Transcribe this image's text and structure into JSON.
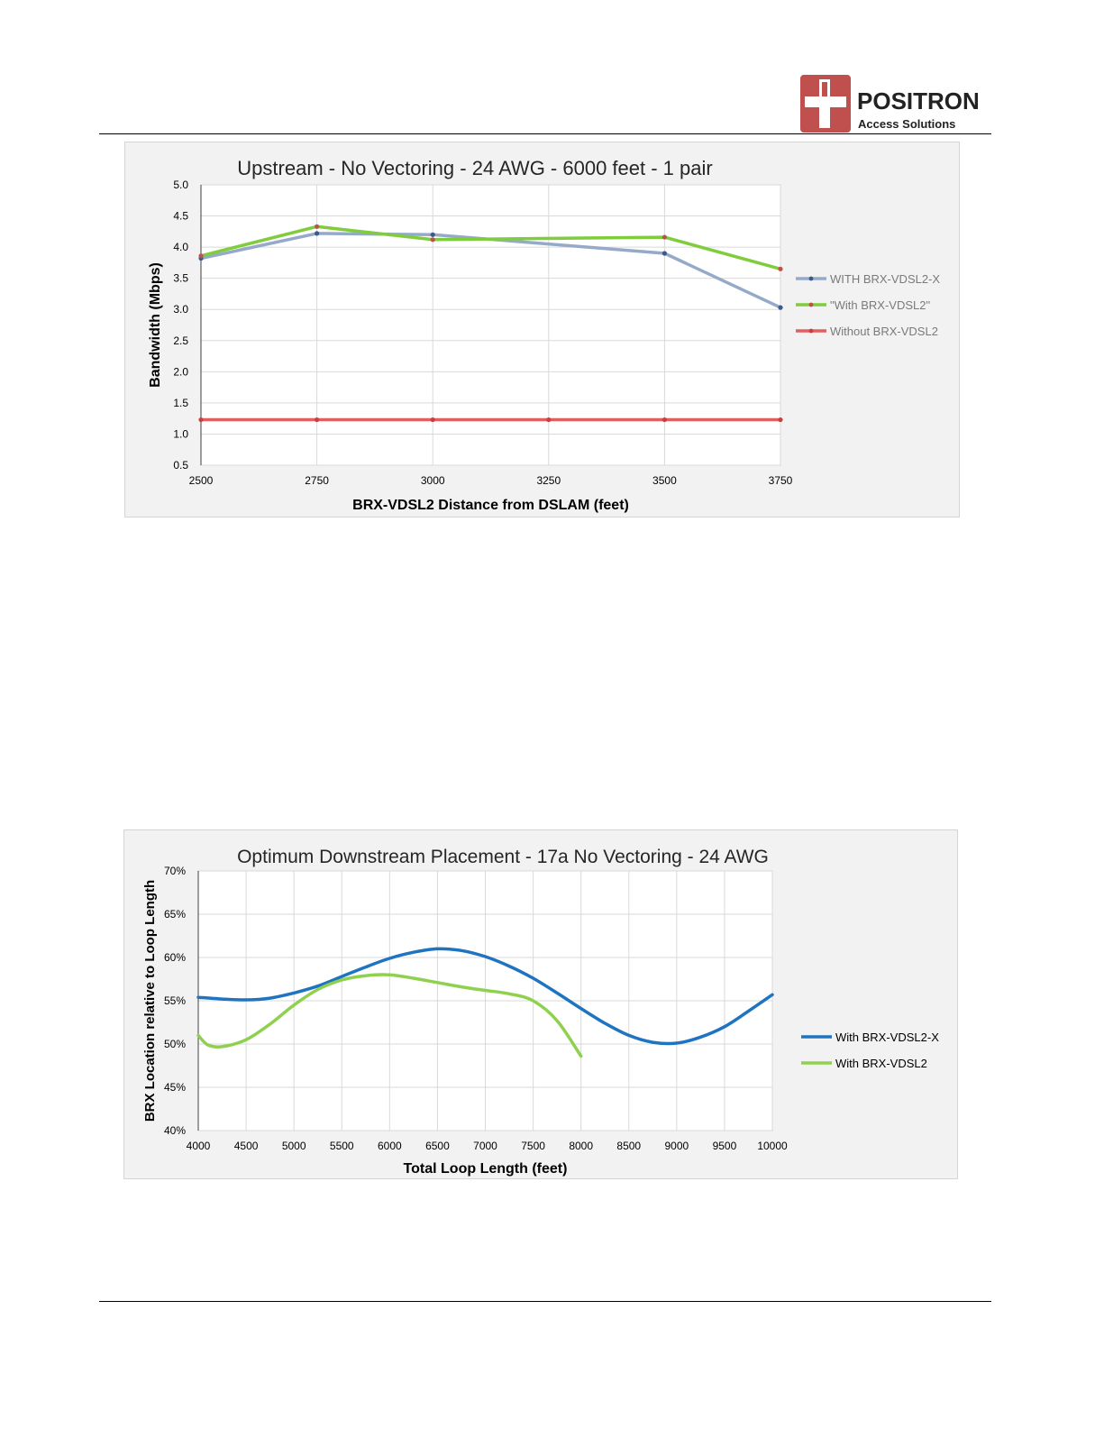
{
  "header": {
    "logo_name": "POSITRON",
    "logo_subtitle": "Access Solutions",
    "logo_icon": "positron-cross-icon",
    "brand_color": "#c0504d"
  },
  "chart_data": [
    {
      "type": "line",
      "title": "Upstream - No Vectoring - 24 AWG - 6000 feet - 1 pair",
      "xlabel": "BRX-VDSL2 Distance from DSLAM (feet)",
      "ylabel": "Bandwidth (Mbps)",
      "x": [
        2500,
        2750,
        3000,
        3250,
        3500,
        3750
      ],
      "xlim": [
        2500,
        3750
      ],
      "ylim": [
        0.5,
        5.0
      ],
      "yticks": [
        "0.5",
        "1.0",
        "1.5",
        "2.0",
        "2.5",
        "3.0",
        "3.5",
        "4.0",
        "4.5",
        "5.0"
      ],
      "xticks": [
        "2500",
        "2750",
        "3000",
        "3250",
        "3500",
        "3750"
      ],
      "grid": true,
      "legend_position": "right",
      "series": [
        {
          "name": "WITH BRX-VDSL2-X",
          "color": "#95a9c9",
          "marker_color": "#3a5a8c",
          "x": [
            2500,
            2750,
            3000,
            3500,
            3750
          ],
          "values": [
            3.82,
            4.22,
            4.2,
            3.9,
            3.03
          ]
        },
        {
          "name": "\"With BRX-VDSL2\"",
          "color": "#7fcc3c",
          "marker_color": "#c0504d",
          "x": [
            2500,
            2750,
            3000,
            3500,
            3750
          ],
          "values": [
            3.86,
            4.33,
            4.12,
            4.16,
            3.65
          ]
        },
        {
          "name": "Without BRX-VDSL2",
          "color": "#e06060",
          "marker_color": "#d03c3c",
          "x": [
            2500,
            2750,
            3000,
            3250,
            3500,
            3750
          ],
          "values": [
            1.23,
            1.23,
            1.23,
            1.23,
            1.23,
            1.23
          ]
        }
      ]
    },
    {
      "type": "line",
      "title": "Optimum Downstream Placement - 17a No Vectoring - 24 AWG",
      "xlabel": "Total Loop Length (feet)",
      "ylabel": "BRX Location relative to Loop Length",
      "xlim": [
        4000,
        10000
      ],
      "ylim": [
        40,
        70
      ],
      "xticks": [
        "4000",
        "4500",
        "5000",
        "5500",
        "6000",
        "6500",
        "7000",
        "7500",
        "8000",
        "8500",
        "9000",
        "9500",
        "10000"
      ],
      "yticks": [
        "40%",
        "45%",
        "50%",
        "55%",
        "60%",
        "65%",
        "70%"
      ],
      "grid": true,
      "legend_position": "right",
      "series": [
        {
          "name": "With BRX-VDSL2-X",
          "color": "#1f74c2",
          "x": [
            4000,
            4250,
            4500,
            4750,
            5000,
            5250,
            5500,
            5750,
            6000,
            6250,
            6500,
            6750,
            7000,
            7250,
            7500,
            7750,
            8000,
            8250,
            8500,
            8750,
            9000,
            9250,
            9500,
            9750,
            10000
          ],
          "values": [
            55.4,
            55.2,
            55.1,
            55.3,
            55.9,
            56.7,
            57.8,
            58.9,
            59.9,
            60.6,
            61.0,
            60.8,
            60.1,
            59.0,
            57.6,
            55.9,
            54.1,
            52.4,
            51.0,
            50.2,
            50.1,
            50.8,
            52.0,
            53.8,
            55.7
          ]
        },
        {
          "name": "With BRX-VDSL2",
          "color": "#8fd14f",
          "x": [
            4000,
            4100,
            4250,
            4500,
            4750,
            5000,
            5250,
            5500,
            5750,
            6000,
            6250,
            6500,
            6750,
            7000,
            7250,
            7500,
            7750,
            8000
          ],
          "values": [
            51.0,
            49.9,
            49.7,
            50.5,
            52.3,
            54.5,
            56.3,
            57.4,
            57.9,
            58.0,
            57.6,
            57.1,
            56.6,
            56.2,
            55.8,
            55.0,
            52.7,
            48.6
          ]
        }
      ]
    }
  ]
}
